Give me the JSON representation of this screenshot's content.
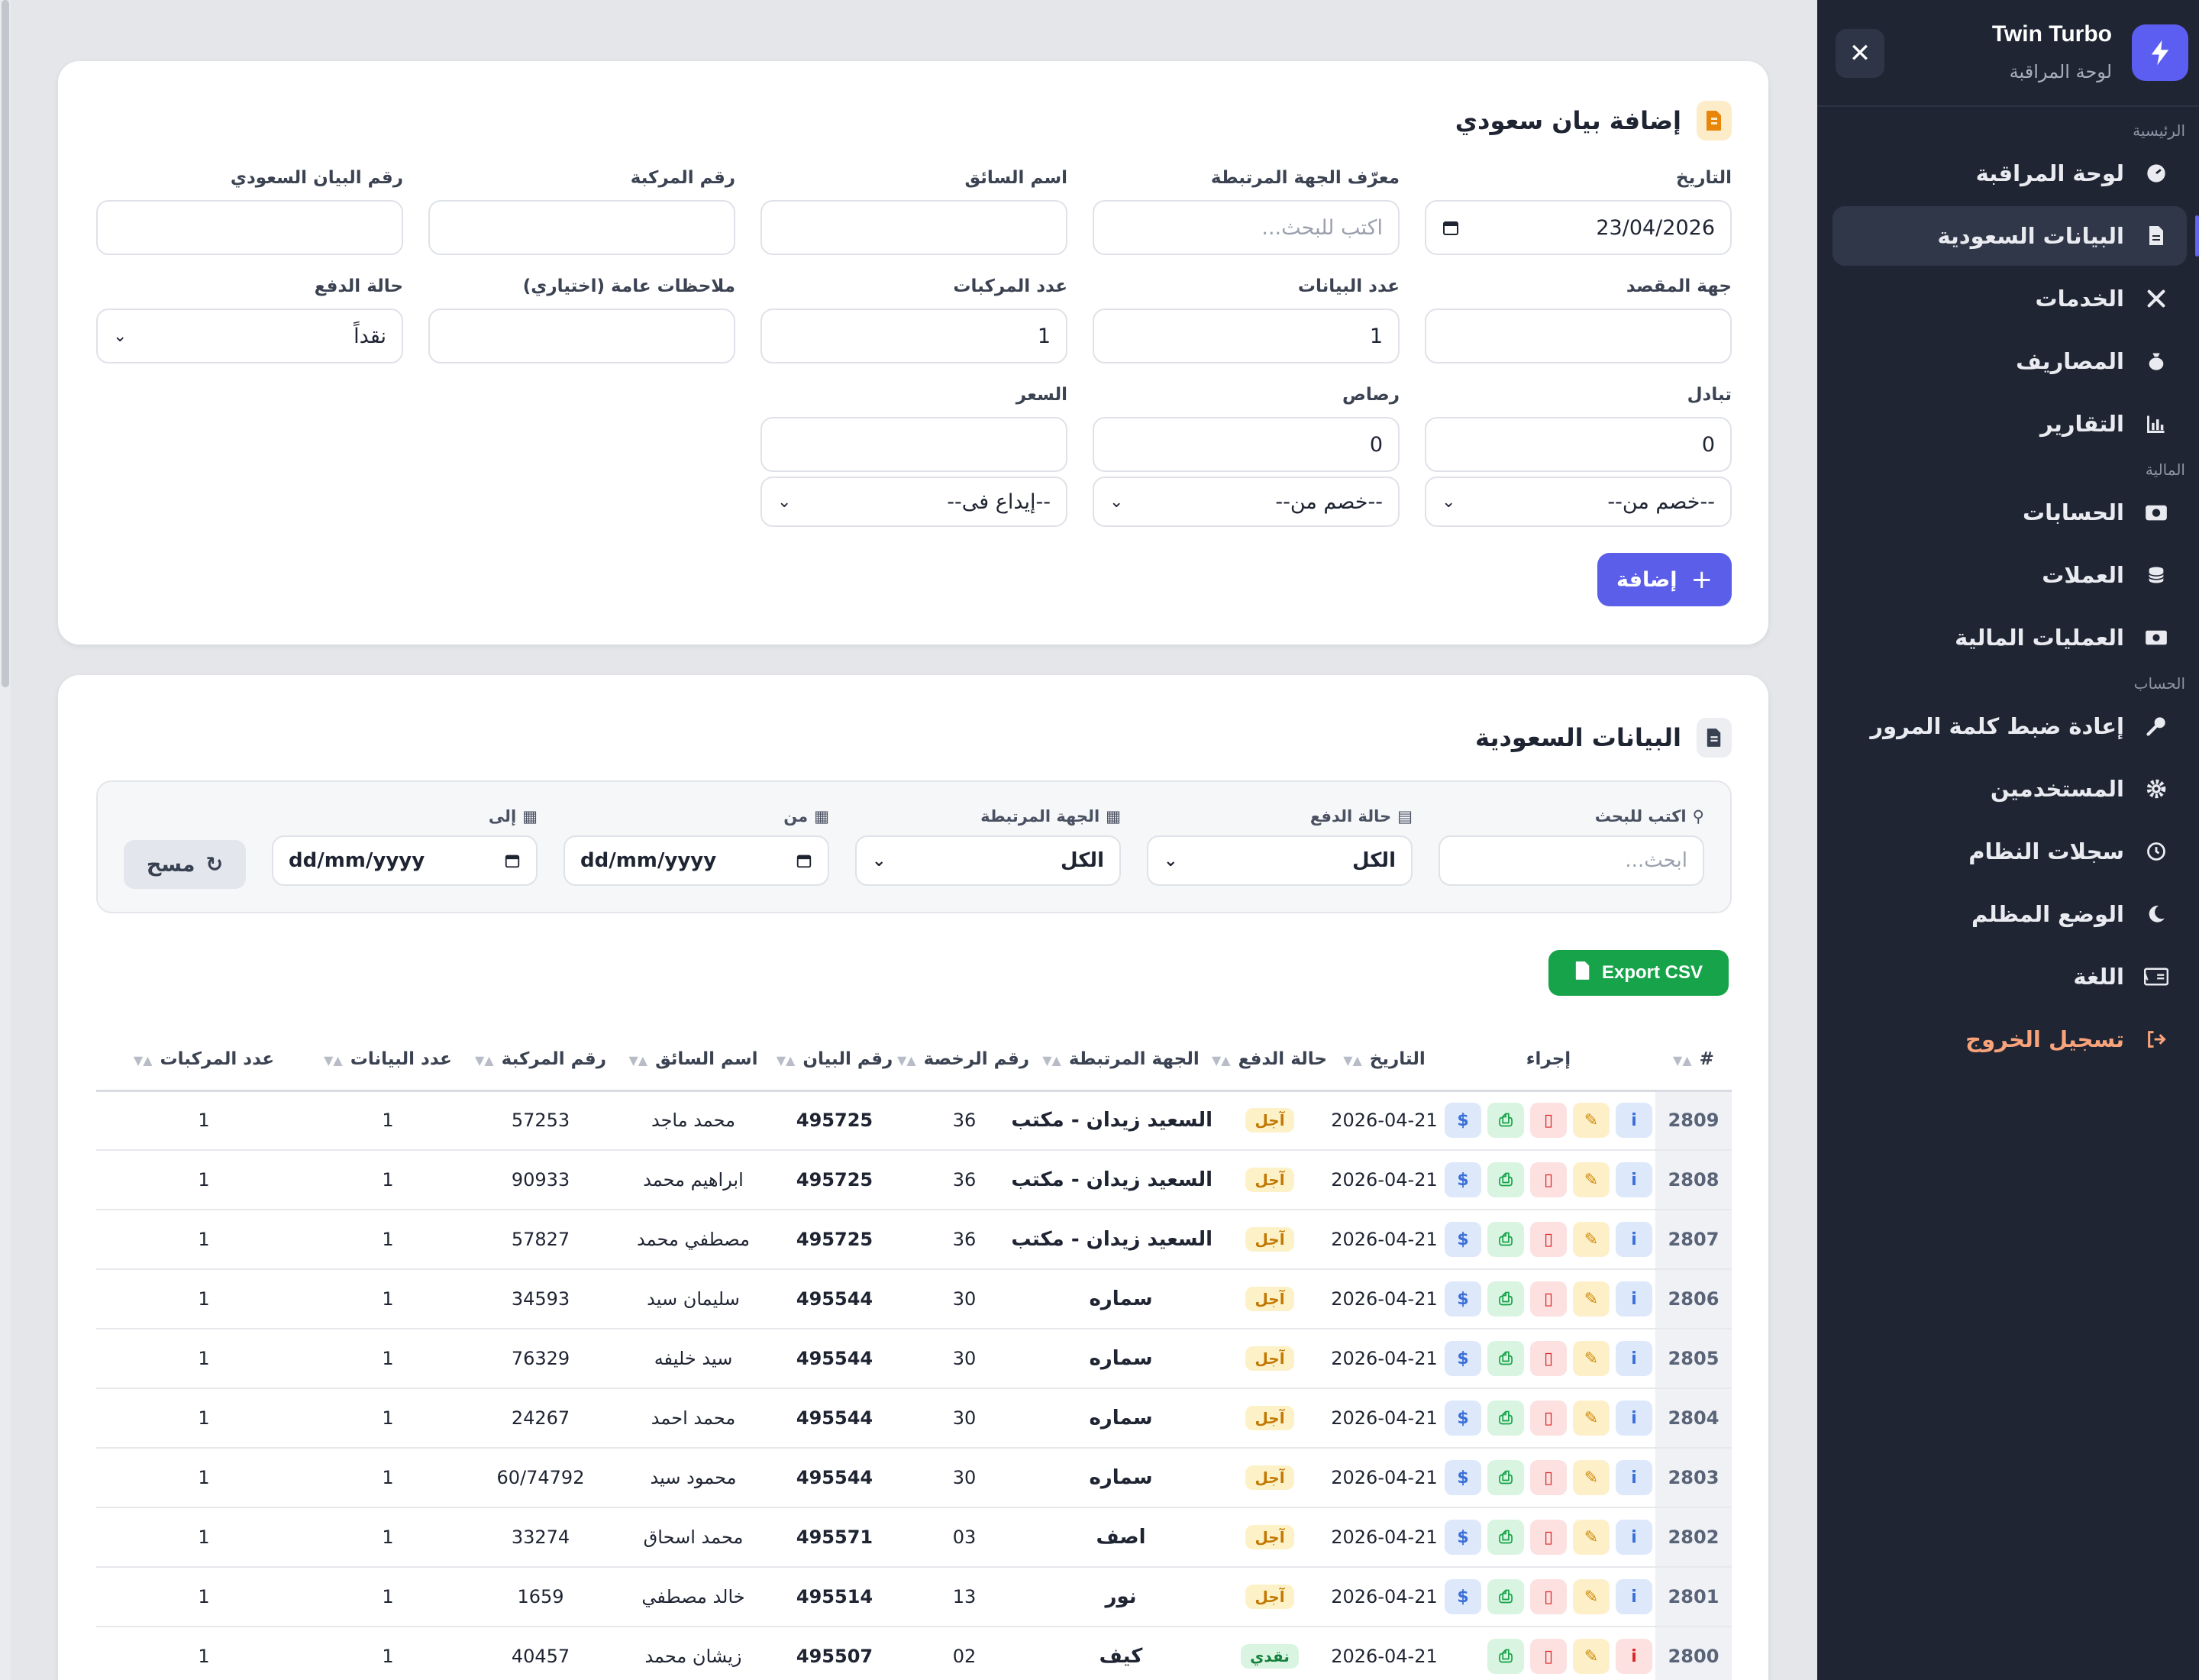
{
  "sidebar": {
    "brand": "Twin Turbo",
    "subtitle": "لوحة المراقبة",
    "sections": {
      "main": "الرئيسية",
      "finance": "المالية",
      "account": "الحساب"
    },
    "items": [
      {
        "label": "لوحة المراقبة",
        "icon": "dashboard-icon"
      },
      {
        "label": "البيانات السعودية",
        "icon": "document-icon",
        "active": true
      },
      {
        "label": "الخدمات",
        "icon": "tools-icon"
      },
      {
        "label": "المصاريف",
        "icon": "money-bag-icon"
      },
      {
        "label": "التقارير",
        "icon": "chart-icon"
      },
      {
        "label": "الحسابات",
        "icon": "camera-icon"
      },
      {
        "label": "العملات",
        "icon": "coins-icon"
      },
      {
        "label": "العمليات المالية",
        "icon": "money-bill-icon"
      },
      {
        "label": "إعادة ضبط كلمة المرور",
        "icon": "key-icon"
      },
      {
        "label": "المستخدمين",
        "icon": "gear-icon"
      },
      {
        "label": "سجلات النظام",
        "icon": "history-icon"
      },
      {
        "label": "الوضع المظلم",
        "icon": "moon-icon"
      },
      {
        "label": "اللغة",
        "icon": "language-icon"
      },
      {
        "label": "تسجيل الخروج",
        "icon": "logout-icon"
      }
    ]
  },
  "form": {
    "title": "إضافة بيان سعودي",
    "date_label": "التاريخ",
    "date_value": "23/04/2026",
    "entity_label": "معرّف الجهة المرتبطة",
    "entity_placeholder": "اكتب للبحث...",
    "driver_label": "اسم السائق",
    "vehicle_label": "رقم المركبة",
    "statement_no_label": "رقم البيان السعودي",
    "destination_label": "جهة المقصد",
    "statements_count_label": "عدد البيانات",
    "statements_count_value": "1",
    "vehicles_count_label": "عدد المركبات",
    "vehicles_count_value": "1",
    "notes_label": "ملاحظات عامة (اختياري)",
    "payment_label": "حالة الدفع",
    "payment_value": "نقداً",
    "exchange_label": "تبادل",
    "exchange_value": "0",
    "lead_label": "رصاص",
    "lead_value": "0",
    "price_label": "السعر",
    "deduct1": "--خصم من--",
    "deduct2": "--خصم من--",
    "deposit": "--إيداع فى--",
    "add_button": "إضافة"
  },
  "list": {
    "title": "البيانات السعودية",
    "search_label": "اكتب للبحث",
    "search_placeholder": "ابحث...",
    "payment_label": "حالة الدفع",
    "payment_value": "الكل",
    "entity_label": "الجهة المرتبطة",
    "entity_value": "الكل",
    "from_label": "من",
    "from_value": "dd/mm/yyyy",
    "to_label": "إلى",
    "to_value": "dd/mm/yyyy",
    "clear_button": "مسح",
    "export_button": "Export CSV",
    "columns": [
      "#",
      "إجراء",
      "التاريخ",
      "حالة الدفع",
      "الجهة المرتبطة",
      "رقم الرخصة",
      "رقم البيان",
      "اسم السائق",
      "رقم المركبة",
      "عدد البيانات",
      "عدد المركبات"
    ],
    "rows": [
      {
        "id": "2809",
        "date": "2026-04-21",
        "status": "آجل",
        "entity": "السعيد زيدان - مكتب",
        "license": "36",
        "statement": "495725",
        "driver": "محمد ماجد",
        "vehicle": "57253",
        "stmts": "1",
        "vehs": "1"
      },
      {
        "id": "2808",
        "date": "2026-04-21",
        "status": "آجل",
        "entity": "السعيد زيدان - مكتب",
        "license": "36",
        "statement": "495725",
        "driver": "ابراهيم محمد",
        "vehicle": "90933",
        "stmts": "1",
        "vehs": "1"
      },
      {
        "id": "2807",
        "date": "2026-04-21",
        "status": "آجل",
        "entity": "السعيد زيدان - مكتب",
        "license": "36",
        "statement": "495725",
        "driver": "مصطفي محمد",
        "vehicle": "57827",
        "stmts": "1",
        "vehs": "1"
      },
      {
        "id": "2806",
        "date": "2026-04-21",
        "status": "آجل",
        "entity": "سماره",
        "license": "30",
        "statement": "495544",
        "driver": "سليمان سيد",
        "vehicle": "34593",
        "stmts": "1",
        "vehs": "1"
      },
      {
        "id": "2805",
        "date": "2026-04-21",
        "status": "آجل",
        "entity": "سماره",
        "license": "30",
        "statement": "495544",
        "driver": "سيد خليفه",
        "vehicle": "76329",
        "stmts": "1",
        "vehs": "1"
      },
      {
        "id": "2804",
        "date": "2026-04-21",
        "status": "آجل",
        "entity": "سماره",
        "license": "30",
        "statement": "495544",
        "driver": "محمد احمد",
        "vehicle": "24267",
        "stmts": "1",
        "vehs": "1"
      },
      {
        "id": "2803",
        "date": "2026-04-21",
        "status": "آجل",
        "entity": "سماره",
        "license": "30",
        "statement": "495544",
        "driver": "محمود سيد",
        "vehicle": "60/74792",
        "stmts": "1",
        "vehs": "1"
      },
      {
        "id": "2802",
        "date": "2026-04-21",
        "status": "آجل",
        "entity": "اصف",
        "license": "03",
        "statement": "495571",
        "driver": "محمد اسحاق",
        "vehicle": "33274",
        "stmts": "1",
        "vehs": "1"
      },
      {
        "id": "2801",
        "date": "2026-04-21",
        "status": "آجل",
        "entity": "نور",
        "license": "13",
        "statement": "495514",
        "driver": "خالد مصطفي",
        "vehicle": "1659",
        "stmts": "1",
        "vehs": "1"
      },
      {
        "id": "2800",
        "date": "2026-04-21",
        "status": "نقدي",
        "entity": "كيف",
        "license": "02",
        "statement": "495507",
        "driver": "زيشان محمد",
        "vehicle": "40457",
        "stmts": "1",
        "vehs": "1"
      }
    ]
  },
  "colors": {
    "accent": "#5a5ee9",
    "sidebar_bg": "#1f2533",
    "export_green": "#16a34a",
    "logout": "#f9a37b"
  }
}
